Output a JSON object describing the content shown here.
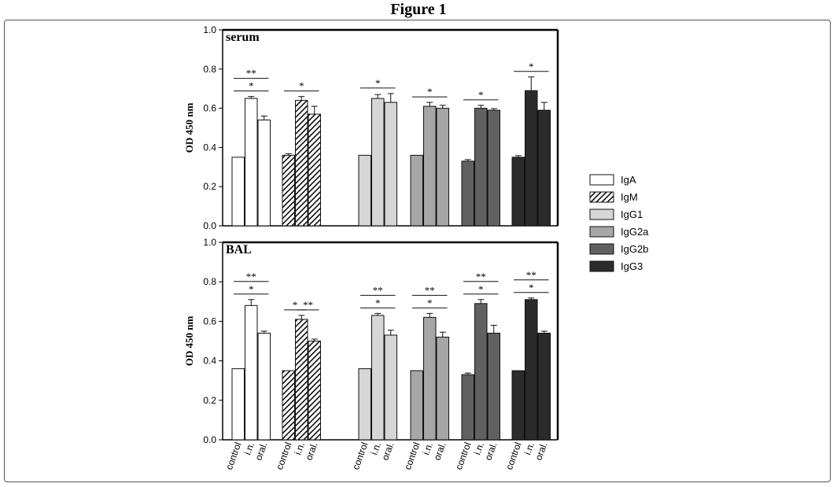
{
  "figure_title": "Figure 1",
  "chart_data": [
    {
      "type": "bar",
      "panel_label": "serum",
      "ylabel": "OD 450 nm",
      "ylim": [
        0,
        1.0
      ],
      "yticks": [
        "0.0",
        "0.2",
        "0.4",
        "0.6",
        "0.8",
        "1.0"
      ],
      "groups": [
        "IgA",
        "IgM",
        "IgG1",
        "IgG2a",
        "IgG2b",
        "IgG3"
      ],
      "conditions": [
        "control",
        "i.n.",
        "oral."
      ],
      "series": [
        {
          "name": "IgA",
          "values": [
            0.35,
            0.65,
            0.54
          ],
          "errors": [
            0.0,
            0.01,
            0.02
          ]
        },
        {
          "name": "IgM",
          "values": [
            0.36,
            0.64,
            0.57
          ],
          "errors": [
            0.008,
            0.02,
            0.04
          ]
        },
        {
          "name": "IgG1",
          "values": [
            0.36,
            0.65,
            0.63
          ],
          "errors": [
            0.0,
            0.02,
            0.045
          ]
        },
        {
          "name": "IgG2a",
          "values": [
            0.36,
            0.61,
            0.6
          ],
          "errors": [
            0.0,
            0.02,
            0.015
          ]
        },
        {
          "name": "IgG2b",
          "values": [
            0.33,
            0.6,
            0.59
          ],
          "errors": [
            0.008,
            0.015,
            0.008
          ]
        },
        {
          "name": "IgG3",
          "values": [
            0.35,
            0.69,
            0.59
          ],
          "errors": [
            0.008,
            0.07,
            0.04
          ]
        }
      ],
      "significance": [
        {
          "group": 0,
          "from": 0,
          "to": 2,
          "level": 2,
          "label": "**"
        },
        {
          "group": 0,
          "from": 0,
          "to": 2,
          "level": 1,
          "label": "*"
        },
        {
          "group": 1,
          "from": 0,
          "to": 2,
          "level": 1,
          "label": "*"
        },
        {
          "group": 2,
          "from": 0,
          "to": 2,
          "level": 1,
          "label": "*"
        },
        {
          "group": 3,
          "from": 0,
          "to": 2,
          "level": 1,
          "label": "*"
        },
        {
          "group": 4,
          "from": 0,
          "to": 2,
          "level": 1,
          "label": "*"
        },
        {
          "group": 5,
          "from": 0,
          "to": 2,
          "level": 1,
          "label": "*"
        }
      ]
    },
    {
      "type": "bar",
      "panel_label": "BAL",
      "ylabel": "OD 450 nm",
      "ylim": [
        0,
        1.0
      ],
      "yticks": [
        "0.0",
        "0.2",
        "0.4",
        "0.6",
        "0.8",
        "1.0"
      ],
      "groups": [
        "IgA",
        "IgM",
        "IgG1",
        "IgG2a",
        "IgG2b",
        "IgG3"
      ],
      "conditions": [
        "control",
        "i.n.",
        "oral."
      ],
      "series": [
        {
          "name": "IgA",
          "values": [
            0.36,
            0.68,
            0.54
          ],
          "errors": [
            0.0,
            0.03,
            0.01
          ]
        },
        {
          "name": "IgM",
          "values": [
            0.35,
            0.61,
            0.5
          ],
          "errors": [
            0.0,
            0.02,
            0.01
          ]
        },
        {
          "name": "IgG1",
          "values": [
            0.36,
            0.63,
            0.53
          ],
          "errors": [
            0.0,
            0.01,
            0.025
          ]
        },
        {
          "name": "IgG2a",
          "values": [
            0.35,
            0.62,
            0.52
          ],
          "errors": [
            0.0,
            0.02,
            0.025
          ]
        },
        {
          "name": "IgG2b",
          "values": [
            0.33,
            0.69,
            0.54
          ],
          "errors": [
            0.008,
            0.02,
            0.04
          ]
        },
        {
          "name": "IgG3",
          "values": [
            0.35,
            0.71,
            0.54
          ],
          "errors": [
            0.0,
            0.008,
            0.01
          ]
        }
      ],
      "significance": [
        {
          "group": 0,
          "from": 0,
          "to": 2,
          "level": 2,
          "label": "**"
        },
        {
          "group": 0,
          "from": 0,
          "to": 2,
          "level": 1,
          "label": "*"
        },
        {
          "group": 1,
          "from": 0,
          "to": 1,
          "level": 1,
          "label": "*"
        },
        {
          "group": 1,
          "from": 1,
          "to": 2,
          "level": 1,
          "label": "**"
        },
        {
          "group": 2,
          "from": 0,
          "to": 2,
          "level": 2,
          "label": "**"
        },
        {
          "group": 2,
          "from": 0,
          "to": 2,
          "level": 1,
          "label": "*"
        },
        {
          "group": 3,
          "from": 0,
          "to": 2,
          "level": 2,
          "label": "**"
        },
        {
          "group": 3,
          "from": 0,
          "to": 2,
          "level": 1,
          "label": "*"
        },
        {
          "group": 4,
          "from": 0,
          "to": 2,
          "level": 2,
          "label": "**"
        },
        {
          "group": 4,
          "from": 0,
          "to": 2,
          "level": 1,
          "label": "*"
        },
        {
          "group": 5,
          "from": 0,
          "to": 2,
          "level": 2,
          "label": "**"
        },
        {
          "group": 5,
          "from": 0,
          "to": 2,
          "level": 1,
          "label": "*"
        }
      ]
    }
  ],
  "legend": [
    {
      "label": "IgA",
      "fill": "#ffffff",
      "pattern": "none"
    },
    {
      "label": "IgM",
      "fill": "#ffffff",
      "pattern": "hatch"
    },
    {
      "label": "IgG1",
      "fill": "#d6d6d6",
      "pattern": "none"
    },
    {
      "label": "IgG2a",
      "fill": "#a6a6a6",
      "pattern": "none"
    },
    {
      "label": "IgG2b",
      "fill": "#616161",
      "pattern": "none"
    },
    {
      "label": "IgG3",
      "fill": "#2b2b2b",
      "pattern": "none"
    }
  ]
}
